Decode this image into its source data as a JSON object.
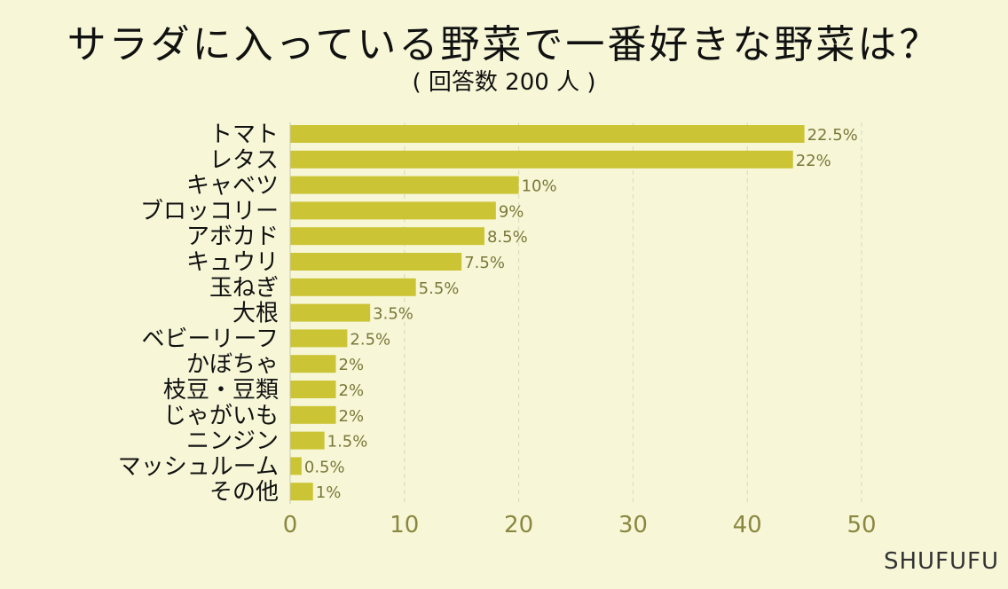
{
  "chart_data": {
    "type": "bar",
    "orientation": "horizontal",
    "title": "サラダに入っている野菜で一番好きな野菜は？",
    "subtitle": "( 回答数 200 人 )",
    "categories": [
      "トマト",
      "レタス",
      "キャベツ",
      "ブロッコリー",
      "アボカド",
      "キュウリ",
      "玉ねぎ",
      "大根",
      "ベビーリーフ",
      "かぼちゃ",
      "枝豆・豆類",
      "じゃがいも",
      "ニンジン",
      "マッシュルーム",
      "その他"
    ],
    "values": [
      45,
      44,
      20,
      18,
      17,
      15,
      11,
      7,
      5,
      4,
      4,
      4,
      3,
      1,
      2
    ],
    "data_labels": [
      "22.5%",
      "22%",
      "10%",
      "9%",
      "8.5%",
      "7.5%",
      "5.5%",
      "3.5%",
      "2.5%",
      "2%",
      "2%",
      "2%",
      "1.5%",
      "0.5%",
      "1%"
    ],
    "xlim": [
      0,
      50
    ],
    "xticks": [
      0,
      10,
      20,
      30,
      40,
      50
    ],
    "grid": true,
    "bar_color": "#cbc536"
  },
  "footer": {
    "brand": "SHUFUFU"
  }
}
